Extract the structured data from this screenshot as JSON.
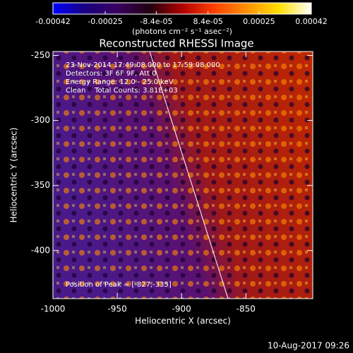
{
  "chart_data": {
    "type": "heatmap",
    "title": "Reconstructed RHESSI Image",
    "xlabel": "Heliocentric X (arcsec)",
    "ylabel": "Heliocentric Y (arcsec)",
    "xlim": [
      -1000,
      -798
    ],
    "xticks": [
      -1000,
      -950,
      -900,
      -850
    ],
    "ylim": [
      -437,
      -247
    ],
    "yticks": [
      -250,
      -300,
      -350,
      -400
    ],
    "colorbar": {
      "label": "(photons cm⁻² s⁻¹ asec⁻²)",
      "lim": [
        -0.00042,
        0.00042
      ],
      "ticks": [
        -0.00042,
        -0.00025,
        {
          "value": -8.4e-05,
          "label": "-8.4e-05"
        },
        {
          "value": 8.4e-05,
          "label": "8.4e-05"
        },
        0.00025,
        0.00042
      ],
      "colors": [
        "#0000ff",
        "#1a0080",
        "#3a0060",
        "#200010",
        "#b00000",
        "#ff4000",
        "#ff9000",
        "#ffe000",
        "#ffffff"
      ]
    },
    "annotations": [
      "23-Nov-2014 17:49:08.000 to 17:59:08.000",
      "Detectors: 3F 6F 9F, Att 0",
      "Energy Range: 12.0 - 25.0 keV",
      "Clean    Total Counts: 3.81E+03",
      "Position of Peak = [-827,-335]"
    ],
    "footer": "10-Aug-2017 09:26"
  }
}
